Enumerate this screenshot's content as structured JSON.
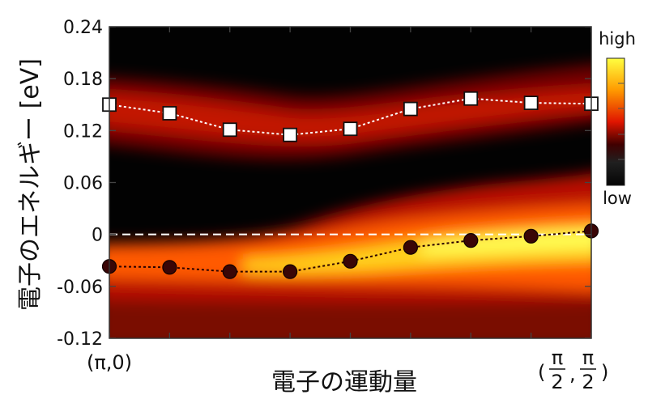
{
  "chart_data": {
    "type": "heatmap",
    "xlabel": "電子の運動量",
    "ylabel": "電子のエネルギー [eV]",
    "x_start_label": "(π,0)",
    "x_end_label": {
      "num": "π",
      "den": "2"
    },
    "ylim": [
      -0.12,
      0.24
    ],
    "yticks": [
      "-0.12",
      "-0.06",
      "0",
      "0.06",
      "0.12",
      "0.18",
      "0.24"
    ],
    "x_tick_count": 9,
    "colorbar": {
      "high": "high",
      "low": "low",
      "colors": [
        "#ffff40",
        "#ff9a00",
        "#e01500",
        "#400000",
        "#202020",
        "#050505"
      ]
    },
    "zero_line": 0,
    "series": [
      {
        "marker": "square",
        "color": "#ffffff",
        "line": "dotted",
        "x": [
          0,
          1,
          2,
          3,
          4,
          5,
          6,
          7,
          8
        ],
        "y": [
          0.15,
          0.14,
          0.121,
          0.115,
          0.122,
          0.145,
          0.157,
          0.152,
          0.151
        ]
      },
      {
        "marker": "circle",
        "color": "#3a0606",
        "line": "dotted",
        "x": [
          0,
          1,
          2,
          3,
          4,
          5,
          6,
          7,
          8
        ],
        "y": [
          -0.037,
          -0.038,
          -0.043,
          -0.043,
          -0.031,
          -0.015,
          -0.007,
          -0.002,
          0.004
        ]
      }
    ]
  }
}
